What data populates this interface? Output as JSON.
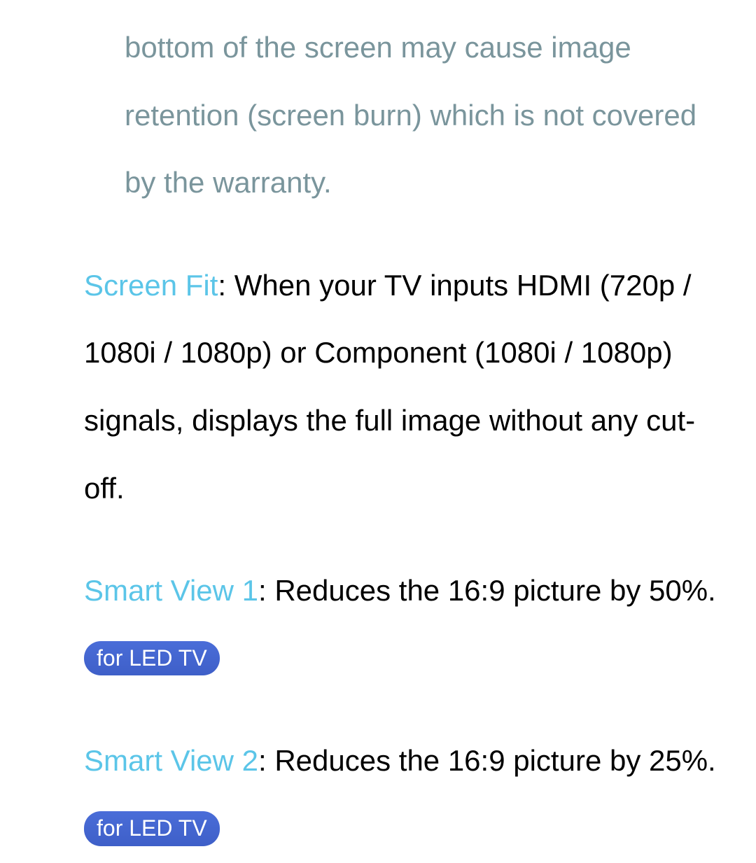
{
  "colors": {
    "note_color": "#7a959c",
    "title_color": "#5bc5e8",
    "body_color": "#000000",
    "badge_bg_top": "#4a6dd8",
    "badge_bg_bottom": "#3e5fc8",
    "badge_text": "#ffffff",
    "background": "#ffffff"
  },
  "typography": {
    "body_fontsize": 42,
    "badge_fontsize": 32,
    "line_height": 2.3
  },
  "note": {
    "text": "bottom of the screen may cause image retention (screen burn) which is not covered by the warranty."
  },
  "items": [
    {
      "title": "Screen Fit",
      "description": ": When your TV inputs HDMI (720p / 1080i / 1080p) or Component (1080i / 1080p) signals, displays the full image without any cut-off.",
      "badge": null
    },
    {
      "title": "Smart View 1",
      "description": ": Reduces the 16:9 picture by 50%. ",
      "badge": "for LED TV"
    },
    {
      "title": "Smart View 2",
      "description": ": Reduces the 16:9 picture by 25%. ",
      "badge": "for LED TV"
    }
  ]
}
